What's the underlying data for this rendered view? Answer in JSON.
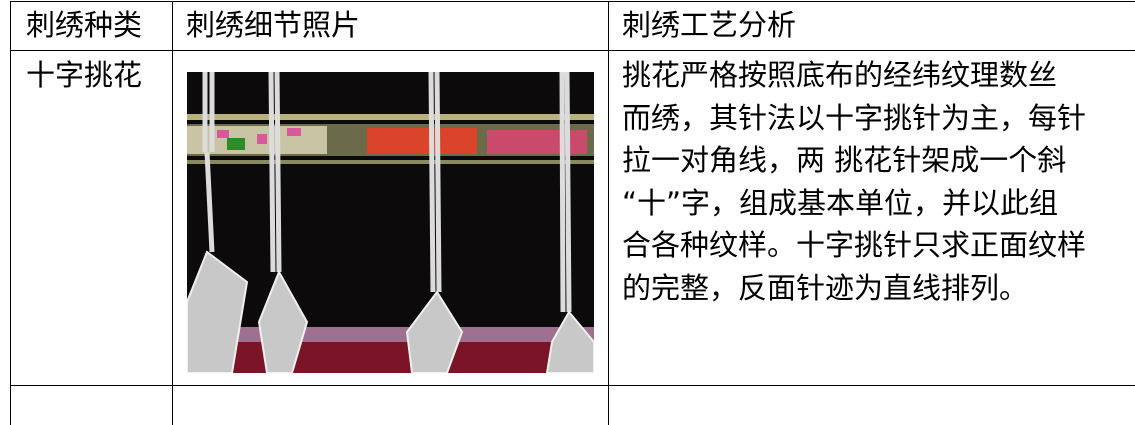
{
  "table": {
    "header": [
      "刺绣种类",
      "刺绣细节照片",
      "刺绣工艺分析"
    ],
    "rows": [
      {
        "type": "十字挑花",
        "analysis": [
          "挑花严格按照底布的经纬纹理数丝",
          "而绣，其针法以十字挑针为主，每针",
          "拉一对角线，两 挑花针架成一个斜",
          "“十”字，组成基本单位，并以此组",
          "合各种纹样。十字挑针只求正面纹样",
          "的完整，反面针迹为直线排列。"
        ]
      }
    ]
  }
}
